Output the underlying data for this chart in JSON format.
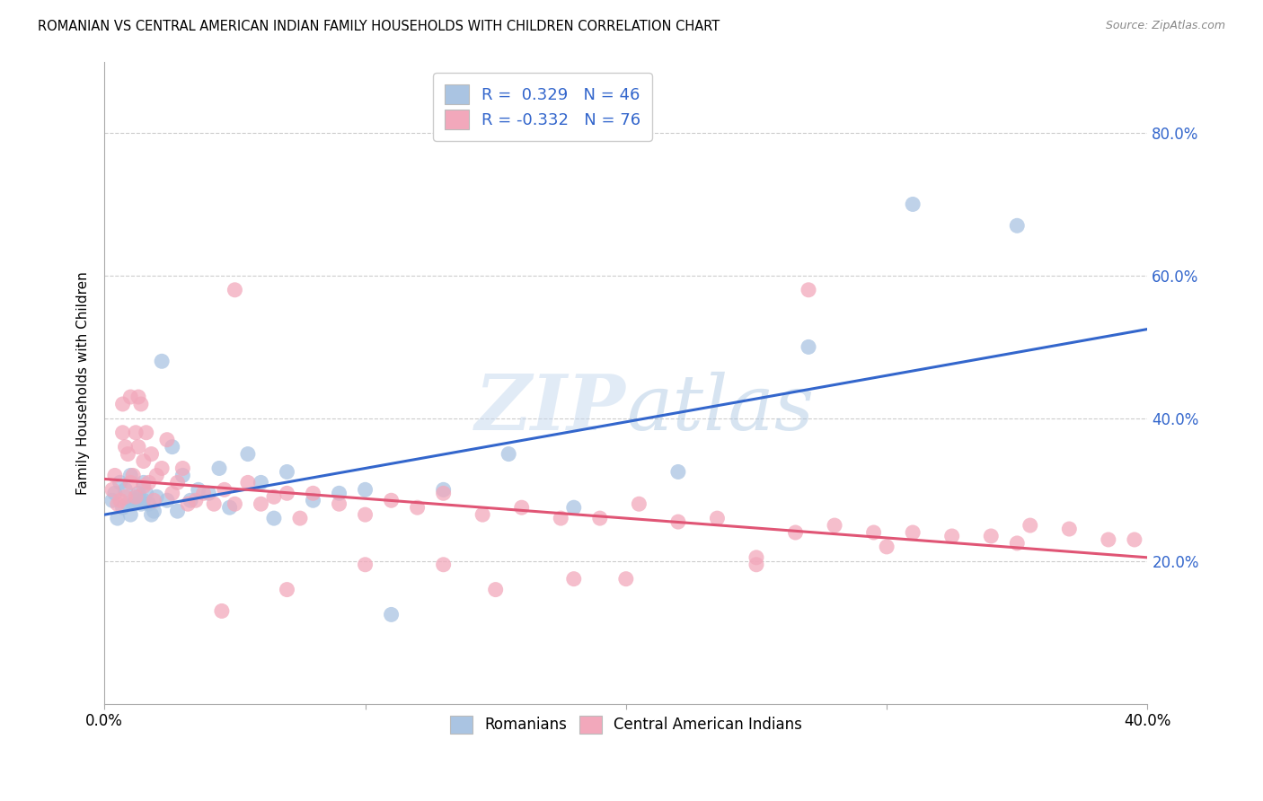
{
  "title": "ROMANIAN VS CENTRAL AMERICAN INDIAN FAMILY HOUSEHOLDS WITH CHILDREN CORRELATION CHART",
  "source": "Source: ZipAtlas.com",
  "ylabel": "Family Households with Children",
  "xlim": [
    0.0,
    0.4
  ],
  "ylim": [
    0.0,
    0.9
  ],
  "yticks": [
    0.2,
    0.4,
    0.6,
    0.8
  ],
  "xticks": [
    0.0,
    0.1,
    0.2,
    0.3,
    0.4
  ],
  "watermark": "ZIPatlas",
  "blue_R": 0.329,
  "blue_N": 46,
  "pink_R": -0.332,
  "pink_N": 76,
  "blue_color": "#aac4e2",
  "pink_color": "#f2a8bb",
  "blue_line_color": "#3366cc",
  "pink_line_color": "#e05575",
  "legend_text_color": "#3366cc",
  "blue_line_x0": 0.0,
  "blue_line_y0": 0.265,
  "blue_line_x1": 0.4,
  "blue_line_y1": 0.525,
  "pink_line_x0": 0.0,
  "pink_line_y0": 0.315,
  "pink_line_x1": 0.4,
  "pink_line_y1": 0.205,
  "blue_scatter_x": [
    0.003,
    0.004,
    0.005,
    0.006,
    0.007,
    0.008,
    0.009,
    0.01,
    0.01,
    0.011,
    0.012,
    0.013,
    0.013,
    0.014,
    0.015,
    0.015,
    0.016,
    0.017,
    0.018,
    0.019,
    0.02,
    0.022,
    0.024,
    0.026,
    0.028,
    0.03,
    0.033,
    0.036,
    0.04,
    0.044,
    0.048,
    0.055,
    0.06,
    0.065,
    0.07,
    0.08,
    0.09,
    0.1,
    0.11,
    0.13,
    0.155,
    0.18,
    0.22,
    0.27,
    0.31,
    0.35
  ],
  "blue_scatter_y": [
    0.285,
    0.295,
    0.26,
    0.31,
    0.275,
    0.3,
    0.28,
    0.32,
    0.265,
    0.28,
    0.285,
    0.29,
    0.295,
    0.28,
    0.31,
    0.285,
    0.295,
    0.28,
    0.265,
    0.27,
    0.29,
    0.48,
    0.285,
    0.36,
    0.27,
    0.32,
    0.285,
    0.3,
    0.295,
    0.33,
    0.275,
    0.35,
    0.31,
    0.26,
    0.325,
    0.285,
    0.295,
    0.3,
    0.125,
    0.3,
    0.35,
    0.275,
    0.325,
    0.5,
    0.7,
    0.67
  ],
  "pink_scatter_x": [
    0.003,
    0.004,
    0.005,
    0.006,
    0.007,
    0.007,
    0.008,
    0.008,
    0.009,
    0.01,
    0.01,
    0.011,
    0.012,
    0.012,
    0.013,
    0.013,
    0.014,
    0.015,
    0.015,
    0.016,
    0.017,
    0.018,
    0.019,
    0.02,
    0.022,
    0.024,
    0.026,
    0.028,
    0.03,
    0.032,
    0.035,
    0.038,
    0.042,
    0.046,
    0.05,
    0.055,
    0.06,
    0.065,
    0.07,
    0.075,
    0.08,
    0.09,
    0.1,
    0.11,
    0.12,
    0.13,
    0.145,
    0.16,
    0.175,
    0.19,
    0.205,
    0.22,
    0.235,
    0.25,
    0.265,
    0.28,
    0.295,
    0.31,
    0.325,
    0.34,
    0.355,
    0.37,
    0.385,
    0.395,
    0.27,
    0.05,
    0.13,
    0.25,
    0.3,
    0.35,
    0.18,
    0.2,
    0.1,
    0.15,
    0.07,
    0.045
  ],
  "pink_scatter_y": [
    0.3,
    0.32,
    0.28,
    0.285,
    0.42,
    0.38,
    0.29,
    0.36,
    0.35,
    0.31,
    0.43,
    0.32,
    0.38,
    0.29,
    0.43,
    0.36,
    0.42,
    0.305,
    0.34,
    0.38,
    0.31,
    0.35,
    0.285,
    0.32,
    0.33,
    0.37,
    0.295,
    0.31,
    0.33,
    0.28,
    0.285,
    0.295,
    0.28,
    0.3,
    0.28,
    0.31,
    0.28,
    0.29,
    0.295,
    0.26,
    0.295,
    0.28,
    0.265,
    0.285,
    0.275,
    0.295,
    0.265,
    0.275,
    0.26,
    0.26,
    0.28,
    0.255,
    0.26,
    0.205,
    0.24,
    0.25,
    0.24,
    0.24,
    0.235,
    0.235,
    0.25,
    0.245,
    0.23,
    0.23,
    0.58,
    0.58,
    0.195,
    0.195,
    0.22,
    0.225,
    0.175,
    0.175,
    0.195,
    0.16,
    0.16,
    0.13
  ]
}
